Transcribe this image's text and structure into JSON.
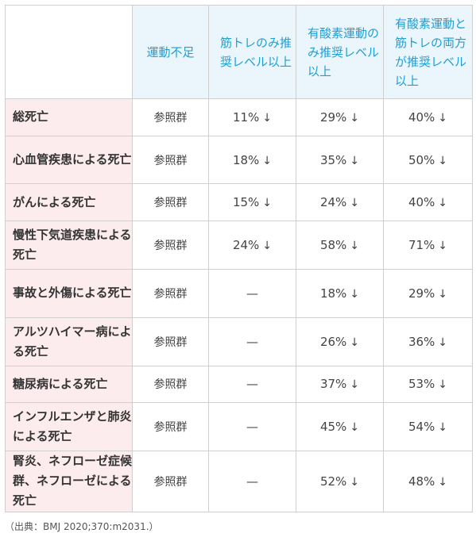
{
  "header": {
    "corner": "",
    "columns": [
      "運動不足",
      "筋トレのみ推奨レベル以上",
      "有酸素運動のみ推奨レベル以上",
      "有酸素運動と筋トレの両方が推奨レベル以上"
    ]
  },
  "arrow": "↓",
  "rows": [
    {
      "label": "総死亡",
      "ref": "参照群",
      "strength": "11%",
      "aerobic": "29%",
      "both": "40%"
    },
    {
      "label": "心血管疾患による死亡",
      "ref": "参照群",
      "strength": "18%",
      "aerobic": "35%",
      "both": "50%"
    },
    {
      "label": "がんによる死亡",
      "ref": "参照群",
      "strength": "15%",
      "aerobic": "24%",
      "both": "40%"
    },
    {
      "label": "慢性下気道疾患による死亡",
      "ref": "参照群",
      "strength": "24%",
      "aerobic": "58%",
      "both": "71%"
    },
    {
      "label": "事故と外傷による死亡",
      "ref": "参照群",
      "strength": "—",
      "aerobic": "18%",
      "both": "29%"
    },
    {
      "label": "アルツハイマー病による死亡",
      "ref": "参照群",
      "strength": "—",
      "aerobic": "26%",
      "both": "36%"
    },
    {
      "label": "糖尿病による死亡",
      "ref": "参照群",
      "strength": "—",
      "aerobic": "37%",
      "both": "53%"
    },
    {
      "label": "インフルエンザと肺炎による死亡",
      "ref": "参照群",
      "strength": "—",
      "aerobic": "45%",
      "both": "54%"
    },
    {
      "label": "腎炎、ネフローゼ症候群、ネフローゼによる死亡",
      "ref": "参照群",
      "strength": "—",
      "aerobic": "52%",
      "both": "48%"
    }
  ],
  "note": "（出典：BMJ 2020;370:m2031.）"
}
